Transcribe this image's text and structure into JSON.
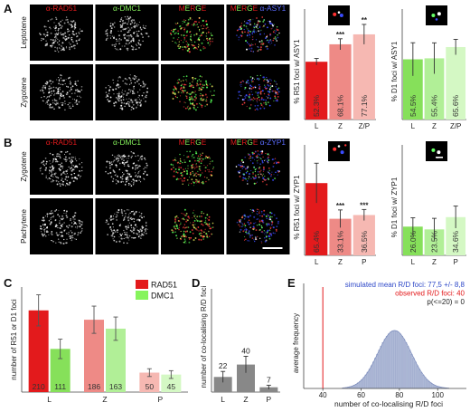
{
  "panels": {
    "A": "A",
    "B": "B",
    "C": "C",
    "D": "D",
    "E": "E"
  },
  "colors": {
    "rad51": "#e31a1c",
    "dmc1": "#86f45c",
    "asy1": "#3b4dd6",
    "zyp1": "#3b4dd6",
    "bar_L_red": "#e31a1c",
    "bar_Z_red": "#ee8a86",
    "bar_P_red": "#f6b8b2",
    "bar_L_green": "#86e05a",
    "bar_Z_green": "#b1ef97",
    "bar_P_green": "#d4f8c4",
    "gray_bar": "#888888",
    "hist": "#aeb9d6",
    "observed_line": "#e31a1c"
  },
  "microscopy": {
    "panelA": {
      "headers": [
        [
          {
            "t": "α-RAD51",
            "c": "#e31a1c"
          }
        ],
        [
          {
            "t": "α-DMC1",
            "c": "#86f45c"
          }
        ],
        [
          {
            "t": "M",
            "c": "#e31a1c"
          },
          {
            "t": "E",
            "c": "#86f45c"
          },
          {
            "t": "R",
            "c": "#e31a1c"
          },
          {
            "t": "G",
            "c": "#86f45c"
          },
          {
            "t": "E",
            "c": "#e31a1c"
          }
        ],
        [
          {
            "t": "M",
            "c": "#e31a1c"
          },
          {
            "t": "E",
            "c": "#86f45c"
          },
          {
            "t": "R",
            "c": "#e31a1c"
          },
          {
            "t": "G",
            "c": "#86f45c"
          },
          {
            "t": "E",
            "c": "#e31a1c"
          },
          {
            "t": " α-ASY1",
            "c": "#5b6cff"
          }
        ]
      ],
      "rows": [
        "Leptotene",
        "Zygotene"
      ]
    },
    "panelB": {
      "headers": [
        [
          {
            "t": "α-RAD51",
            "c": "#e31a1c"
          }
        ],
        [
          {
            "t": "α-DMC1",
            "c": "#86f45c"
          }
        ],
        [
          {
            "t": "M",
            "c": "#e31a1c"
          },
          {
            "t": "E",
            "c": "#86f45c"
          },
          {
            "t": "R",
            "c": "#e31a1c"
          },
          {
            "t": "G",
            "c": "#86f45c"
          },
          {
            "t": "E",
            "c": "#e31a1c"
          }
        ],
        [
          {
            "t": "M",
            "c": "#e31a1c"
          },
          {
            "t": "E",
            "c": "#86f45c"
          },
          {
            "t": "R",
            "c": "#e31a1c"
          },
          {
            "t": "G",
            "c": "#86f45c"
          },
          {
            "t": "E",
            "c": "#e31a1c"
          },
          {
            "t": " α-ZYP1",
            "c": "#5b6cff"
          }
        ]
      ],
      "rows": [
        "Zygotene",
        "Pachytene"
      ]
    }
  },
  "chart_data": [
    {
      "id": "A-rad51",
      "type": "bar",
      "ylabel": "% R51 foci w/ ASY1",
      "categories": [
        "L",
        "Z",
        "Z/P"
      ],
      "values": [
        52.3,
        68.1,
        77.1
      ],
      "errors": [
        3,
        5,
        9
      ],
      "bar_labels": [
        "52.3%",
        "68.1%",
        "77.1%"
      ],
      "significance": [
        "",
        "***",
        "**"
      ],
      "ylim": [
        0,
        100
      ]
    },
    {
      "id": "A-dmc1",
      "type": "bar",
      "ylabel": "% D1 foci w/ ASY1",
      "categories": [
        "L",
        "Z",
        "Z/P"
      ],
      "values": [
        54.5,
        55.4,
        65.6
      ],
      "errors": [
        15,
        14,
        7
      ],
      "bar_labels": [
        "54.5%",
        "55.4%",
        "65.6%"
      ],
      "significance": [
        "",
        "",
        ""
      ],
      "ylim": [
        0,
        100
      ]
    },
    {
      "id": "B-rad51",
      "type": "bar",
      "ylabel": "% R51 foci w/ ZYP1",
      "categories": [
        "L",
        "Z",
        "P"
      ],
      "values": [
        65.4,
        33.1,
        36.5
      ],
      "errors": [
        18,
        8,
        5
      ],
      "bar_labels": [
        "65.4%",
        "33.1%",
        "36.5%"
      ],
      "significance": [
        "",
        "***",
        "***"
      ],
      "ylim": [
        0,
        100
      ]
    },
    {
      "id": "B-dmc1",
      "type": "bar",
      "ylabel": "% D1 foci w/ ZYP1",
      "categories": [
        "L",
        "Z",
        "P"
      ],
      "values": [
        26.0,
        23.5,
        34.6
      ],
      "errors": [
        8,
        10,
        10
      ],
      "bar_labels": [
        "26.0%",
        "23.5%",
        "34.6%"
      ],
      "significance": [
        "",
        "",
        ""
      ],
      "ylim": [
        0,
        100
      ]
    },
    {
      "id": "C",
      "type": "bar",
      "ylabel": "number of R51 or D1 foci",
      "categories": [
        "L",
        "Z",
        "P"
      ],
      "series": [
        {
          "name": "RAD51",
          "values": [
            210,
            186,
            50
          ],
          "errors": [
            40,
            35,
            10
          ]
        },
        {
          "name": "DMC1",
          "values": [
            111,
            163,
            45
          ],
          "errors": [
            25,
            30,
            10
          ]
        }
      ],
      "ylim": [
        0,
        270
      ]
    },
    {
      "id": "D",
      "type": "bar",
      "ylabel": "number of co-localising R/D foci",
      "categories": [
        "L",
        "Z",
        "P"
      ],
      "values": [
        22,
        40,
        7
      ],
      "errors": [
        8,
        12,
        3
      ],
      "ylim": [
        0,
        150
      ]
    },
    {
      "id": "E",
      "type": "histogram",
      "xlabel": "number of co-localising R/D foci",
      "ylabel": "average frequency",
      "xticks": [
        40,
        60,
        80,
        100
      ],
      "xlim": [
        30,
        115
      ],
      "mean": 77.5,
      "sd": 8.8,
      "observed": 40,
      "annotations": [
        {
          "text": "simulated mean R/D foci: 77,5 +/- 8,8",
          "color": "#2e48c8"
        },
        {
          "text": "observed R/D foci: 40",
          "color": "#e31a1c"
        },
        {
          "text": "p(<=20) = 0",
          "color": "#222222"
        }
      ]
    }
  ]
}
